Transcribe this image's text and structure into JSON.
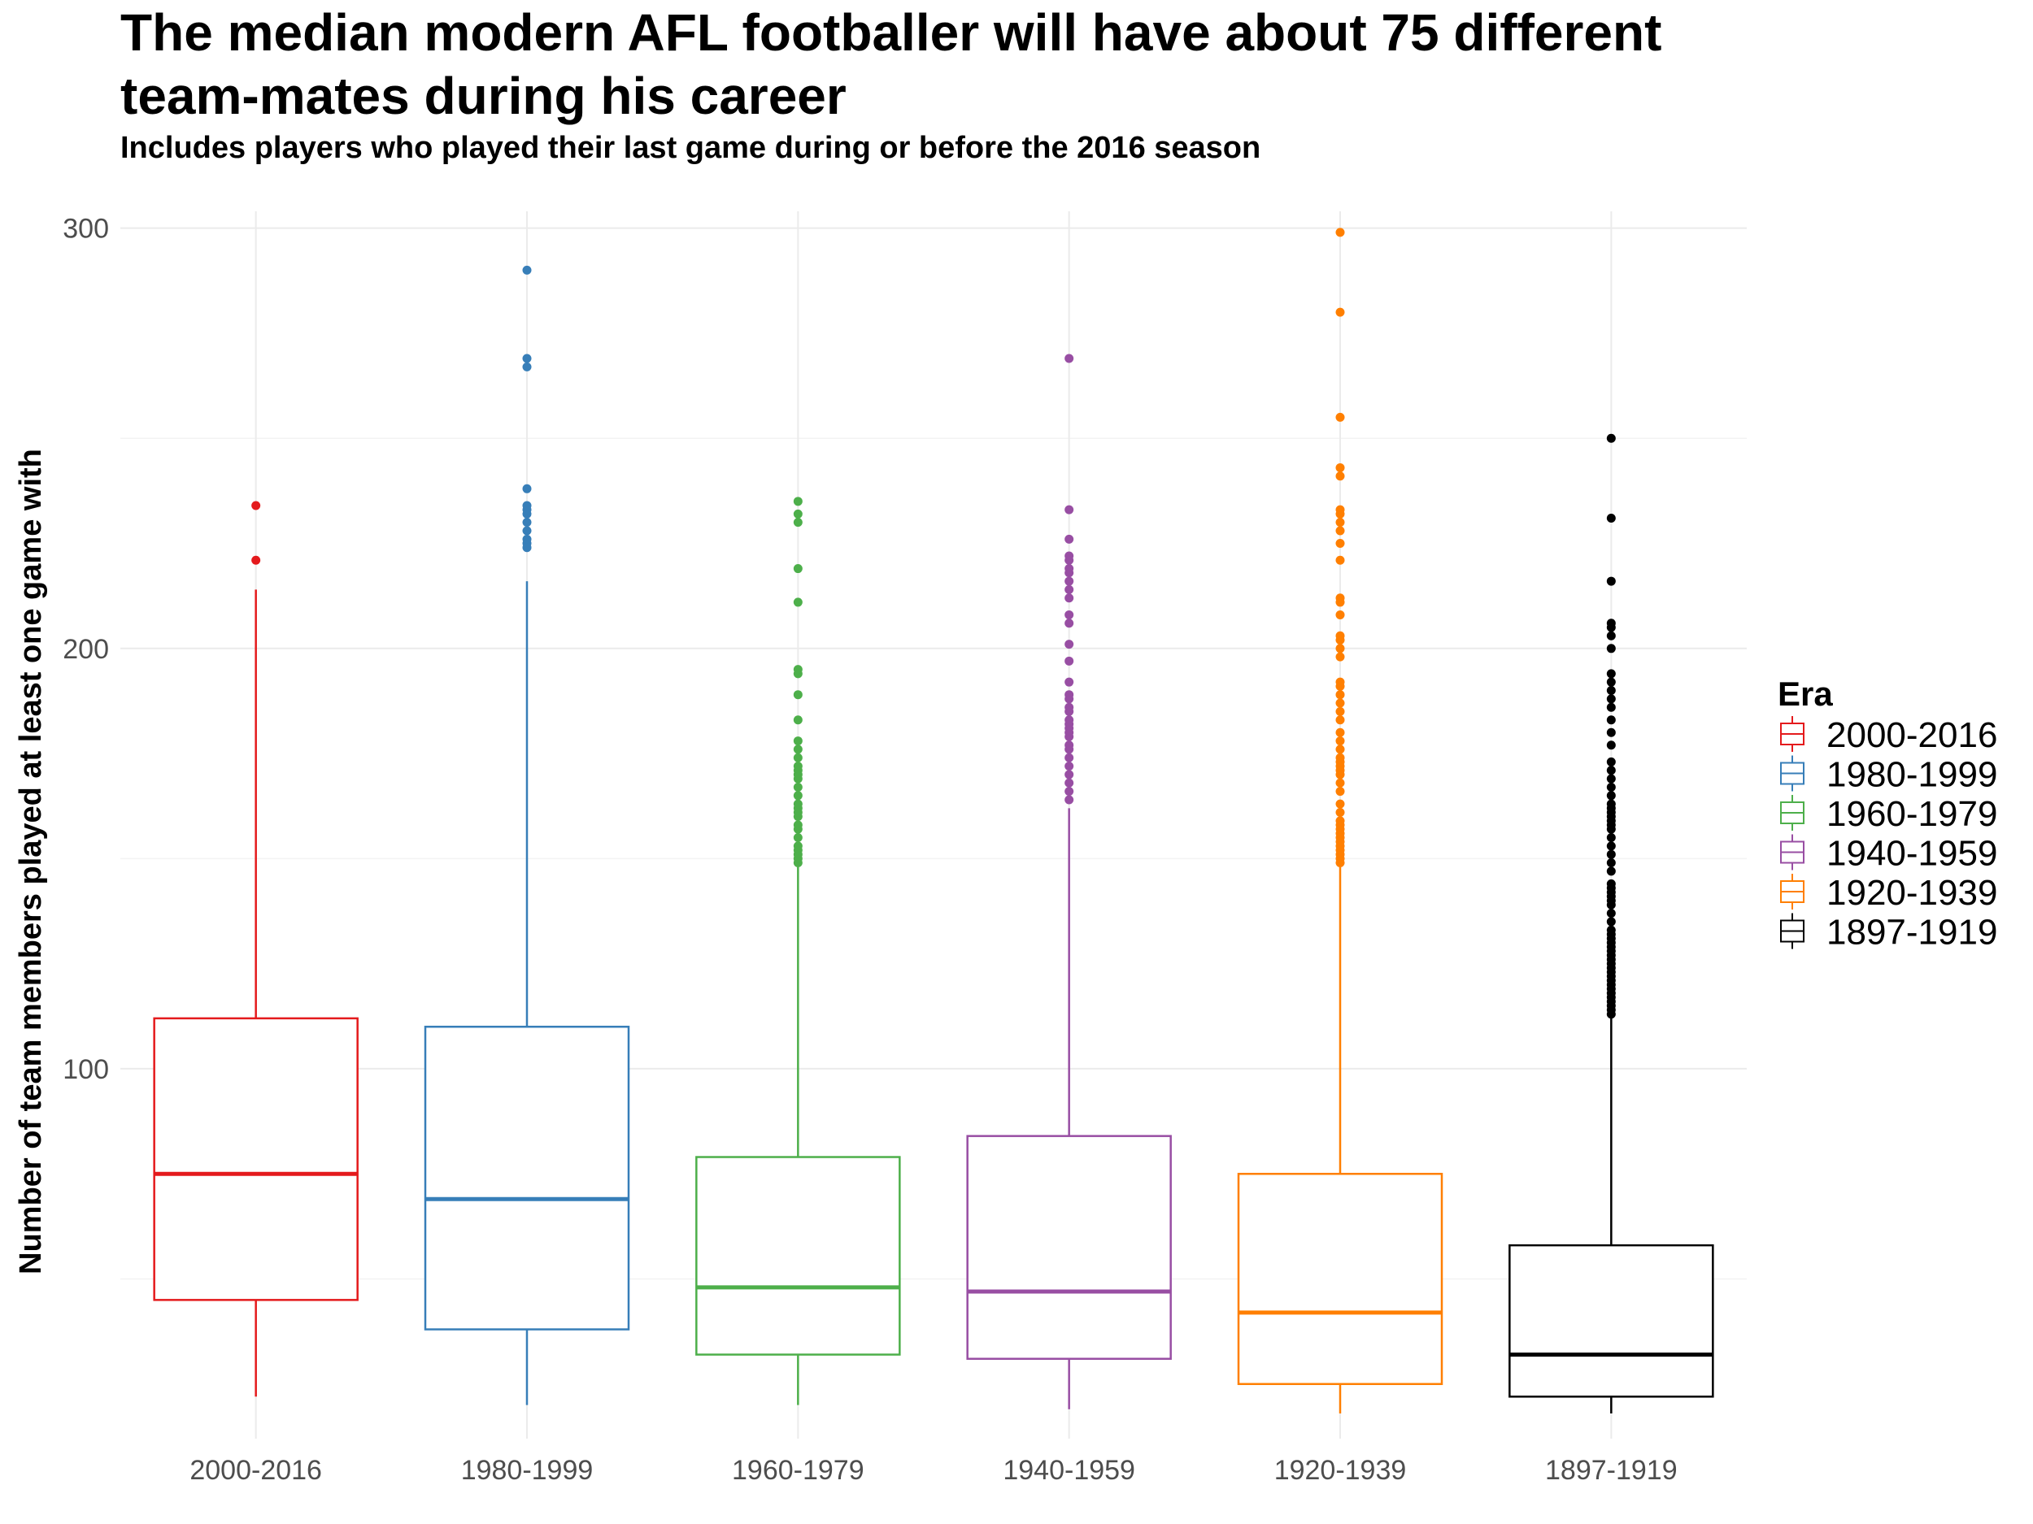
{
  "chart_data": {
    "type": "boxplot",
    "title_line1": "The median modern AFL footballer will have about 75 different",
    "title_line2": "team-mates during his career",
    "subtitle": "Includes players who played their last game during or before the 2016 season",
    "xlabel": "",
    "ylabel": "Number of team members played at least one game with",
    "ylim": [
      12,
      304
    ],
    "yticks": [
      100,
      200,
      300
    ],
    "ytick_labels": [
      "100",
      "200",
      "300"
    ],
    "grid": true,
    "legend": {
      "title": "Era",
      "position": "right"
    },
    "categories": [
      "2000-2016",
      "1980-1999",
      "1960-1979",
      "1940-1959",
      "1920-1939",
      "1897-1919"
    ],
    "series": [
      {
        "name": "2000-2016",
        "color": "#e41a1c",
        "whisker_low": 22,
        "q1": 45,
        "median": 75,
        "q3": 112,
        "whisker_high": 214,
        "outliers": [
          221,
          234
        ]
      },
      {
        "name": "1980-1999",
        "color": "#377eb8",
        "whisker_low": 20,
        "q1": 38,
        "median": 69,
        "q3": 110,
        "whisker_high": 216,
        "outliers": [
          224,
          225,
          226,
          228,
          230,
          232,
          233,
          234,
          238,
          267,
          269,
          290
        ]
      },
      {
        "name": "1960-1979",
        "color": "#4daf4a",
        "whisker_low": 20,
        "q1": 32,
        "median": 48,
        "q3": 79,
        "whisker_high": 148,
        "outliers": [
          149,
          150,
          151,
          152,
          153,
          155,
          157,
          158,
          160,
          161,
          162,
          163,
          165,
          167,
          169,
          170,
          171,
          172,
          174,
          176,
          178,
          183,
          189,
          194,
          195,
          211,
          219,
          230,
          232,
          235
        ]
      },
      {
        "name": "1940-1959",
        "color": "#984ea3",
        "whisker_low": 19,
        "q1": 31,
        "median": 47,
        "q3": 84,
        "whisker_high": 162,
        "outliers": [
          164,
          166,
          168,
          170,
          172,
          174,
          176,
          177,
          179,
          180,
          181,
          182,
          183,
          185,
          186,
          188,
          189,
          192,
          197,
          201,
          206,
          208,
          212,
          214,
          216,
          218,
          219,
          221,
          222,
          226,
          233,
          269
        ]
      },
      {
        "name": "1920-1939",
        "color": "#ff7f00",
        "whisker_low": 18,
        "q1": 25,
        "median": 42,
        "q3": 75,
        "whisker_high": 148,
        "outliers": [
          149,
          150,
          151,
          152,
          153,
          154,
          155,
          156,
          157,
          158,
          159,
          161,
          163,
          166,
          168,
          170,
          171,
          172,
          173,
          174,
          176,
          178,
          180,
          183,
          185,
          187,
          189,
          191,
          192,
          198,
          200,
          202,
          203,
          208,
          211,
          212,
          221,
          225,
          228,
          230,
          232,
          233,
          241,
          243,
          255,
          280,
          299
        ]
      },
      {
        "name": "1897-1919",
        "color": "#000000",
        "whisker_low": 18,
        "q1": 22,
        "median": 32,
        "q3": 58,
        "whisker_high": 112,
        "outliers": [
          113,
          114,
          115,
          116,
          117,
          118,
          119,
          120,
          121,
          122,
          123,
          124,
          125,
          126,
          127,
          128,
          129,
          130,
          131,
          132,
          133,
          135,
          137,
          139,
          140,
          141,
          142,
          143,
          144,
          147,
          149,
          151,
          153,
          155,
          157,
          158,
          159,
          160,
          161,
          162,
          163,
          165,
          167,
          169,
          171,
          173,
          177,
          180,
          183,
          186,
          188,
          190,
          192,
          194,
          200,
          203,
          205,
          206,
          216,
          231,
          250
        ]
      }
    ]
  }
}
